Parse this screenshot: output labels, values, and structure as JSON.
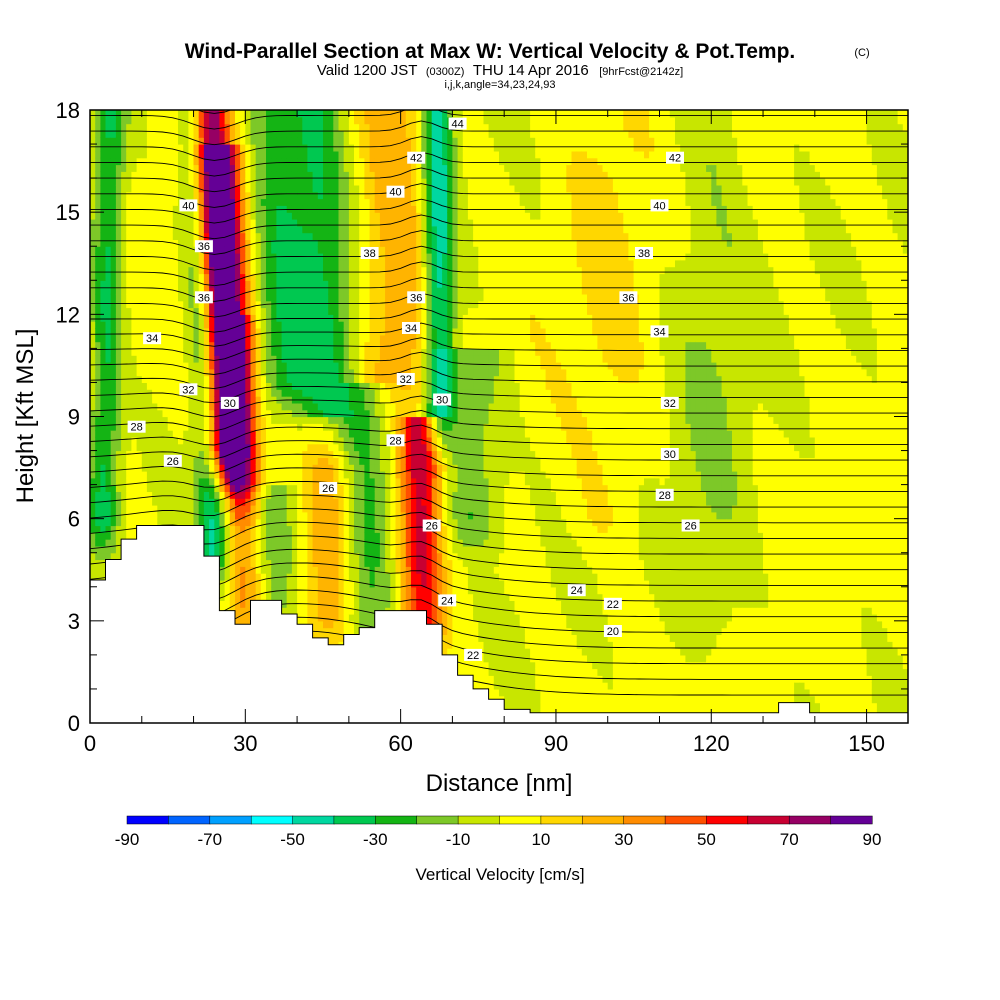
{
  "chart_data": {
    "type": "heatmap",
    "title": "Wind-Parallel Section at Max W: Vertical Velocity & Pot.Temp.",
    "title_mark": "(C)",
    "subtitle": {
      "valid": "Valid 1200 JST",
      "utc": "(0300Z)",
      "date": "THU 14 Apr 2016",
      "forecast": "[9hrFcst@2142z]"
    },
    "indices": "i,j,k,angle=34,23,24,93",
    "xlabel": "Distance [nm]",
    "ylabel": "Height [Kft MSL]",
    "xlim": [
      0,
      158
    ],
    "ylim": [
      0,
      18
    ],
    "x_ticks": [
      0,
      30,
      60,
      90,
      120,
      150
    ],
    "y_ticks": [
      0,
      3,
      6,
      9,
      12,
      15,
      18
    ],
    "x_minor_step": 10,
    "y_minor_step": 1,
    "colorbar": {
      "label": "Vertical Velocity [cm/s]",
      "levels": [
        -90,
        -80,
        -70,
        -60,
        -50,
        -40,
        -30,
        -20,
        -10,
        0,
        10,
        20,
        30,
        40,
        50,
        60,
        70,
        80,
        90
      ],
      "tick_labels": [
        "-90",
        "-70",
        "-50",
        "-30",
        "-10",
        "10",
        "30",
        "50",
        "70",
        "90"
      ],
      "colors": [
        "#0000ff",
        "#0064ff",
        "#00a0ff",
        "#00ffff",
        "#00d7a0",
        "#00c850",
        "#14b414",
        "#7dc828",
        "#c8e600",
        "#ffff00",
        "#ffd700",
        "#ffb400",
        "#ff8c00",
        "#ff5000",
        "#ff0000",
        "#c80032",
        "#960064",
        "#640096"
      ]
    },
    "vertical_velocity_features": [
      {
        "x": 23,
        "width": 4,
        "top": 18,
        "bottom": 8,
        "w": 85,
        "slope": 0.55
      },
      {
        "x": 26,
        "width": 4,
        "top": 16,
        "bottom": 7,
        "w": 45,
        "slope": 0.55
      },
      {
        "x": 29,
        "width": 3,
        "top": 11,
        "bottom": 3,
        "w": 25,
        "slope": 0.2
      },
      {
        "x": 64,
        "width": 4,
        "top": 8,
        "bottom": 2.5,
        "w": 55,
        "slope": 0
      },
      {
        "x": 63,
        "width": 4,
        "top": 18,
        "bottom": 8,
        "w": 15,
        "slope": 0.1
      },
      {
        "x": 46,
        "width": 4,
        "top": 8,
        "bottom": 3,
        "w": 22,
        "slope": 0
      },
      {
        "x": 57,
        "width": 5,
        "top": 18,
        "bottom": 10,
        "w": 22,
        "slope": 0.2
      },
      {
        "x": 4,
        "width": 3,
        "top": 18,
        "bottom": 6,
        "w": -35,
        "slope": -0.2
      },
      {
        "x": 20,
        "width": 3,
        "top": 18,
        "bottom": 5,
        "w": -45,
        "slope": 0.5
      },
      {
        "x": 36,
        "width": 6,
        "top": 18,
        "bottom": 10,
        "w": -32,
        "slope": 0.6
      },
      {
        "x": 44,
        "width": 5,
        "top": 18,
        "bottom": 9,
        "w": -28,
        "slope": 0.6
      },
      {
        "x": 67,
        "width": 3,
        "top": 18,
        "bottom": 9,
        "w": -50,
        "slope": 0.1
      },
      {
        "x": 54,
        "width": 5,
        "top": 9,
        "bottom": 3,
        "w": -25,
        "slope": 0
      },
      {
        "x": 36,
        "width": 4,
        "top": 6,
        "bottom": 3,
        "w": -18,
        "slope": 0
      },
      {
        "x": 74,
        "width": 6,
        "top": 10,
        "bottom": 6,
        "w": -22,
        "slope": 0
      },
      {
        "x": 100,
        "width": 8,
        "top": 18,
        "bottom": 6,
        "w": 8,
        "slope": 0
      },
      {
        "x": 120,
        "width": 8,
        "top": 18,
        "bottom": 3,
        "w": -12,
        "slope": 0
      }
    ],
    "terrain": [
      [
        0,
        4.2
      ],
      [
        3,
        4.2
      ],
      [
        3,
        4.8
      ],
      [
        6,
        4.8
      ],
      [
        6,
        5.4
      ],
      [
        9,
        5.4
      ],
      [
        9,
        5.8
      ],
      [
        22,
        5.8
      ],
      [
        22,
        4.9
      ],
      [
        25,
        4.9
      ],
      [
        25,
        3.3
      ],
      [
        28,
        3.3
      ],
      [
        28,
        2.9
      ],
      [
        31,
        2.9
      ],
      [
        31,
        3.6
      ],
      [
        37,
        3.6
      ],
      [
        37,
        3.2
      ],
      [
        40,
        3.2
      ],
      [
        40,
        2.9
      ],
      [
        43,
        2.9
      ],
      [
        43,
        2.5
      ],
      [
        46,
        2.5
      ],
      [
        46,
        2.3
      ],
      [
        49,
        2.3
      ],
      [
        49,
        2.6
      ],
      [
        52,
        2.6
      ],
      [
        52,
        2.8
      ],
      [
        55,
        2.8
      ],
      [
        55,
        3.3
      ],
      [
        65,
        3.3
      ],
      [
        65,
        2.9
      ],
      [
        68,
        2.9
      ],
      [
        68,
        2.0
      ],
      [
        71,
        2.0
      ],
      [
        71,
        1.4
      ],
      [
        74,
        1.4
      ],
      [
        74,
        1.0
      ],
      [
        77,
        1.0
      ],
      [
        77,
        0.7
      ],
      [
        80,
        0.7
      ],
      [
        80,
        0.4
      ],
      [
        85,
        0.4
      ],
      [
        85,
        0.3
      ],
      [
        133,
        0.3
      ],
      [
        133,
        0.6
      ],
      [
        139,
        0.6
      ],
      [
        139,
        0.3
      ],
      [
        158,
        0.3
      ]
    ],
    "isentropes": [
      {
        "label": "20",
        "x": 101,
        "y": 2.7
      },
      {
        "label": "22",
        "x": 101,
        "y": 3.5
      },
      {
        "label": "22",
        "x": 74,
        "y": 2.0
      },
      {
        "label": "24",
        "x": 94,
        "y": 3.9
      },
      {
        "label": "24",
        "x": 69,
        "y": 3.6
      },
      {
        "label": "26",
        "x": 16,
        "y": 7.7
      },
      {
        "label": "26",
        "x": 46,
        "y": 6.9
      },
      {
        "label": "26",
        "x": 66,
        "y": 5.8
      },
      {
        "label": "26",
        "x": 116,
        "y": 5.8
      },
      {
        "label": "28",
        "x": 9,
        "y": 8.7
      },
      {
        "label": "28",
        "x": 59,
        "y": 8.3
      },
      {
        "label": "28",
        "x": 111,
        "y": 6.7
      },
      {
        "label": "30",
        "x": 27,
        "y": 9.4
      },
      {
        "label": "30",
        "x": 68,
        "y": 9.5
      },
      {
        "label": "30",
        "x": 112,
        "y": 7.9
      },
      {
        "label": "32",
        "x": 19,
        "y": 9.8
      },
      {
        "label": "32",
        "x": 61,
        "y": 10.1
      },
      {
        "label": "32",
        "x": 112,
        "y": 9.4
      },
      {
        "label": "34",
        "x": 12,
        "y": 11.3
      },
      {
        "label": "34",
        "x": 62,
        "y": 11.6
      },
      {
        "label": "34",
        "x": 110,
        "y": 11.5
      },
      {
        "label": "36",
        "x": 22,
        "y": 12.5
      },
      {
        "label": "36",
        "x": 63,
        "y": 12.5
      },
      {
        "label": "36",
        "x": 104,
        "y": 12.5
      },
      {
        "label": "36",
        "x": 22,
        "y": 14.0
      },
      {
        "label": "38",
        "x": 54,
        "y": 13.8
      },
      {
        "label": "38",
        "x": 107,
        "y": 13.8
      },
      {
        "label": "40",
        "x": 19,
        "y": 15.2
      },
      {
        "label": "40",
        "x": 59,
        "y": 15.6
      },
      {
        "label": "40",
        "x": 110,
        "y": 15.2
      },
      {
        "label": "42",
        "x": 63,
        "y": 16.6
      },
      {
        "label": "42",
        "x": 113,
        "y": 16.6
      },
      {
        "label": "44",
        "x": 71,
        "y": 17.6
      }
    ]
  }
}
